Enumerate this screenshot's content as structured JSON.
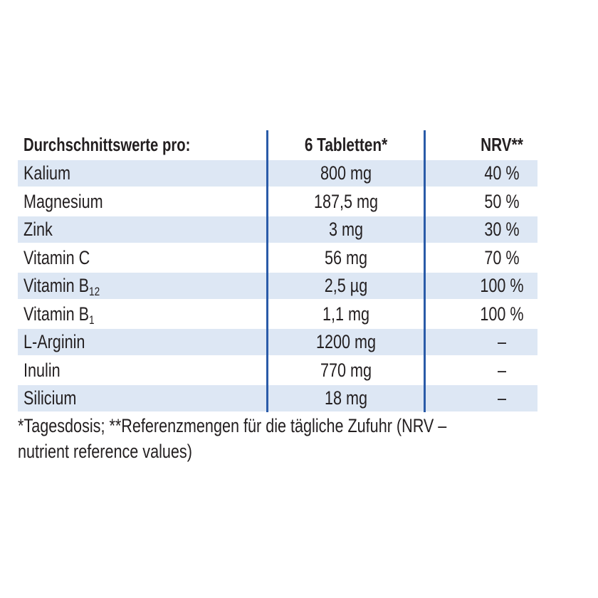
{
  "table": {
    "header": [
      "Durchschnittswerte pro:",
      "6 Tabletten*",
      "NRV**"
    ],
    "rows": [
      [
        {
          "text": "Kalium"
        },
        "800 mg",
        "40 %"
      ],
      [
        {
          "text": "Magnesium"
        },
        "187,5 mg",
        "50 %"
      ],
      [
        {
          "text": "Zink"
        },
        "3 mg",
        "30 %"
      ],
      [
        {
          "text": "Vitamin C"
        },
        "56 mg",
        "70 %"
      ],
      [
        {
          "text": "Vitamin B",
          "sub": "12"
        },
        "2,5 µg",
        "100 %"
      ],
      [
        {
          "text": "Vitamin B",
          "sub": "1"
        },
        "1,1 mg",
        "100 %"
      ],
      [
        {
          "text": "L-Arginin"
        },
        "1200 mg",
        "–"
      ],
      [
        {
          "text": "Inulin"
        },
        "770 mg",
        "–"
      ],
      [
        {
          "text": "Silicium"
        },
        "18 mg",
        "–"
      ]
    ]
  },
  "footnote": [
    "*Tagesdosis; **Referenzmengen für die tägliche Zufuhr (NRV –",
    "nutrient reference values)"
  ]
}
